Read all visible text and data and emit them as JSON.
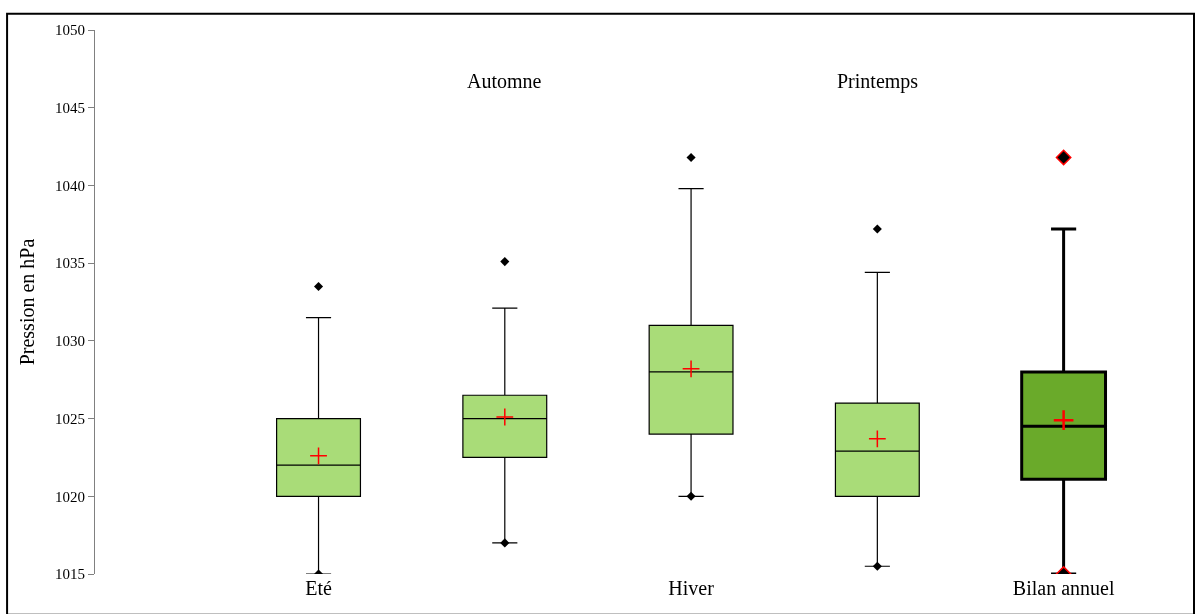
{
  "chart_data": {
    "type": "box",
    "ylabel": "Pression en hPa",
    "categories": [
      "Eté",
      "Automne",
      "Hiver",
      "Printemps",
      "Bilan annuel"
    ],
    "colors": [
      "#a9dc78",
      "#a9dc78",
      "#a9dc78",
      "#a9dc78",
      "#6aaa2a"
    ],
    "boxes": [
      {
        "low": 1015,
        "q1": 1020,
        "median": 1022,
        "q3": 1025,
        "high": 1031.5,
        "mean": 1022.6,
        "outliers": [
          1033.5,
          1015
        ]
      },
      {
        "low": 1017,
        "q1": 1022.5,
        "median": 1025,
        "q3": 1026.5,
        "high": 1032.1,
        "mean": 1025.1,
        "outliers": [
          1035.1,
          1017
        ]
      },
      {
        "low": 1020,
        "q1": 1024,
        "median": 1028,
        "q3": 1031,
        "high": 1039.8,
        "mean": 1028.2,
        "outliers": [
          1041.8,
          1020
        ]
      },
      {
        "low": 1015.5,
        "q1": 1020,
        "median": 1022.9,
        "q3": 1026,
        "high": 1034.4,
        "mean": 1023.7,
        "outliers": [
          1037.2,
          1015.5
        ]
      },
      {
        "low": 1015,
        "q1": 1021.1,
        "median": 1024.5,
        "q3": 1028,
        "high": 1037.2,
        "mean": 1024.9,
        "outliers": [
          1041.8,
          1015
        ]
      }
    ],
    "ylim": [
      1015,
      1050
    ],
    "yticks": [
      1015,
      1020,
      1025,
      1030,
      1035,
      1040,
      1045,
      1050
    ],
    "marker": "diamond"
  }
}
